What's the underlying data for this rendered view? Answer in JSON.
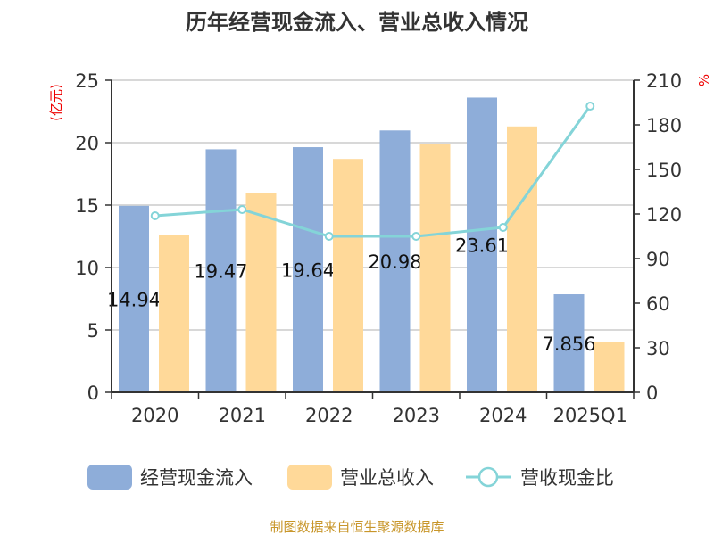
{
  "chart_data": {
    "type": "bar",
    "title": "历年经营现金流入、营业总收入情况",
    "categories": [
      "2020",
      "2021",
      "2022",
      "2023",
      "2024",
      "2025Q1"
    ],
    "ylabel_left": "(亿元)",
    "ylabel_right": "%",
    "ylim_left": [
      0,
      25
    ],
    "ylim_right": [
      0,
      210
    ],
    "left_ticks": [
      "0",
      "5",
      "10",
      "15",
      "20",
      "25"
    ],
    "right_ticks": [
      "0",
      "30",
      "60",
      "90",
      "120",
      "150",
      "180",
      "210"
    ],
    "grid": true,
    "legend_position": "bottom",
    "series": [
      {
        "name": "经营现金流入",
        "type": "bar",
        "color": "#8eadd9",
        "values": [
          14.94,
          19.47,
          19.64,
          20.98,
          23.61,
          7.856
        ],
        "labels": [
          "14.94",
          "19.47",
          "19.64",
          "20.98",
          "23.61",
          "7.856"
        ]
      },
      {
        "name": "营业总收入",
        "type": "bar",
        "color": "#ffd999",
        "values": [
          12.64,
          15.93,
          18.7,
          19.9,
          21.3,
          4.07
        ]
      },
      {
        "name": "营收现金比",
        "type": "line",
        "axis": "right",
        "color": "#84d4d8",
        "values": [
          118.8,
          123,
          105,
          105,
          111,
          192.6
        ]
      }
    ]
  },
  "footer": "制图数据来自恒生聚源数据库"
}
